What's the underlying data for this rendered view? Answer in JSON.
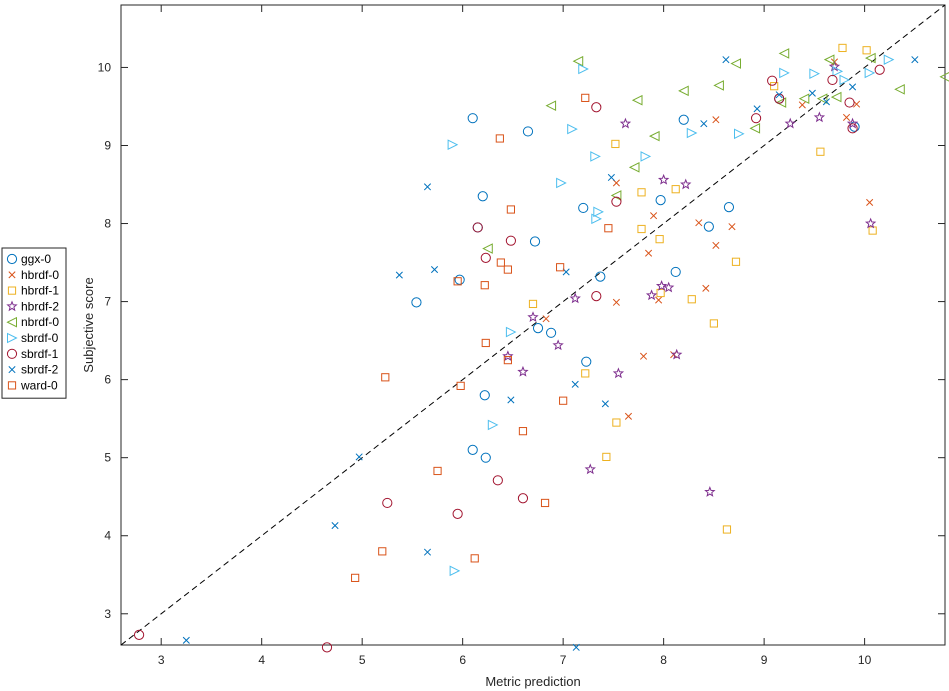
{
  "chart_data": {
    "type": "scatter",
    "xlabel": "Metric prediction",
    "ylabel": "Subjective score",
    "xlim": [
      2.6,
      10.8
    ],
    "ylim": [
      2.6,
      10.8
    ],
    "xticks": [
      3,
      4,
      5,
      6,
      7,
      8,
      9,
      10
    ],
    "yticks": [
      3,
      4,
      5,
      6,
      7,
      8,
      9,
      10
    ],
    "reference_line": "dashed diagonal y = x",
    "legend_position": "outside-left",
    "series": [
      {
        "name": "ggx-0",
        "marker": "circle",
        "color": "#0072BD",
        "points": [
          [
            6.1,
            9.35
          ],
          [
            6.65,
            9.18
          ],
          [
            6.2,
            8.35
          ],
          [
            7.2,
            8.2
          ],
          [
            8.65,
            8.21
          ],
          [
            8.45,
            7.96
          ],
          [
            7.97,
            8.3
          ],
          [
            6.15,
            7.95
          ],
          [
            6.72,
            7.77
          ],
          [
            5.97,
            7.28
          ],
          [
            5.54,
            6.99
          ],
          [
            7.37,
            7.32
          ],
          [
            8.12,
            7.38
          ],
          [
            6.75,
            6.66
          ],
          [
            6.88,
            6.6
          ],
          [
            7.23,
            6.23
          ],
          [
            6.22,
            5.8
          ],
          [
            6.1,
            5.1
          ],
          [
            6.23,
            5.0
          ],
          [
            8.2,
            9.33
          ],
          [
            9.9,
            9.24
          ],
          [
            9.15,
            9.6
          ]
        ]
      },
      {
        "name": "hbrdf-0",
        "marker": "x",
        "color": "#D95319",
        "points": [
          [
            7.53,
            8.52
          ],
          [
            7.9,
            8.1
          ],
          [
            7.85,
            7.62
          ],
          [
            8.35,
            8.01
          ],
          [
            8.52,
            7.72
          ],
          [
            8.68,
            7.96
          ],
          [
            8.42,
            7.17
          ],
          [
            7.53,
            6.99
          ],
          [
            7.95,
            7.02
          ],
          [
            6.83,
            6.78
          ],
          [
            7.8,
            6.3
          ],
          [
            8.1,
            6.32
          ],
          [
            7.65,
            5.53
          ],
          [
            8.52,
            9.33
          ],
          [
            9.38,
            9.52
          ],
          [
            9.7,
            10.07
          ],
          [
            9.82,
            9.36
          ],
          [
            9.92,
            9.53
          ],
          [
            10.05,
            8.27
          ]
        ]
      },
      {
        "name": "hbrdf-1",
        "marker": "square",
        "color": "#EDB120",
        "points": [
          [
            7.52,
            9.02
          ],
          [
            7.78,
            8.4
          ],
          [
            8.12,
            8.44
          ],
          [
            7.78,
            7.93
          ],
          [
            7.96,
            7.8
          ],
          [
            8.72,
            7.51
          ],
          [
            7.97,
            7.11
          ],
          [
            8.28,
            7.03
          ],
          [
            6.7,
            6.97
          ],
          [
            8.5,
            6.72
          ],
          [
            7.22,
            6.08
          ],
          [
            7.53,
            5.45
          ],
          [
            7.43,
            5.01
          ],
          [
            8.63,
            4.08
          ],
          [
            9.1,
            9.76
          ],
          [
            9.56,
            8.92
          ],
          [
            9.78,
            10.25
          ],
          [
            10.02,
            10.22
          ],
          [
            10.08,
            7.91
          ]
        ]
      },
      {
        "name": "hbrdf-2",
        "marker": "star",
        "color": "#7E2F8E",
        "points": [
          [
            7.62,
            9.28
          ],
          [
            8.0,
            8.56
          ],
          [
            8.22,
            8.5
          ],
          [
            7.98,
            7.2
          ],
          [
            8.05,
            7.18
          ],
          [
            7.88,
            7.08
          ],
          [
            7.12,
            7.04
          ],
          [
            6.7,
            6.8
          ],
          [
            6.95,
            6.44
          ],
          [
            6.45,
            6.3
          ],
          [
            6.6,
            6.1
          ],
          [
            7.55,
            6.08
          ],
          [
            8.13,
            6.32
          ],
          [
            7.27,
            4.85
          ],
          [
            8.46,
            4.56
          ],
          [
            9.26,
            9.28
          ],
          [
            9.55,
            9.36
          ],
          [
            9.7,
            10.01
          ],
          [
            9.88,
            9.28
          ],
          [
            10.06,
            8.0
          ]
        ]
      },
      {
        "name": "nbrdf-0",
        "marker": "triangle-left",
        "color": "#77AC30",
        "points": [
          [
            7.15,
            10.08
          ],
          [
            6.88,
            9.51
          ],
          [
            7.74,
            9.58
          ],
          [
            7.91,
            9.12
          ],
          [
            7.71,
            8.72
          ],
          [
            7.53,
            8.36
          ],
          [
            8.2,
            9.7
          ],
          [
            8.55,
            9.77
          ],
          [
            8.72,
            10.05
          ],
          [
            8.91,
            9.22
          ],
          [
            9.2,
            10.18
          ],
          [
            9.65,
            10.1
          ],
          [
            9.72,
            9.62
          ],
          [
            9.17,
            9.55
          ],
          [
            9.4,
            9.6
          ],
          [
            9.58,
            9.6
          ],
          [
            10.06,
            10.12
          ],
          [
            10.35,
            9.72
          ],
          [
            10.8,
            9.88
          ],
          [
            6.25,
            7.68
          ]
        ]
      },
      {
        "name": "sbrdf-0",
        "marker": "triangle-right",
        "color": "#4DBEEE",
        "points": [
          [
            5.9,
            9.01
          ],
          [
            7.2,
            9.98
          ],
          [
            7.09,
            9.21
          ],
          [
            6.98,
            8.52
          ],
          [
            7.32,
            8.86
          ],
          [
            7.82,
            8.86
          ],
          [
            8.28,
            9.16
          ],
          [
            8.75,
            9.15
          ],
          [
            7.35,
            8.15
          ],
          [
            7.33,
            8.06
          ],
          [
            9.2,
            9.93
          ],
          [
            9.5,
            9.92
          ],
          [
            9.73,
            9.95
          ],
          [
            9.8,
            9.84
          ],
          [
            10.05,
            9.93
          ],
          [
            10.24,
            10.1
          ],
          [
            6.48,
            6.61
          ],
          [
            6.3,
            5.42
          ],
          [
            5.92,
            3.55
          ]
        ]
      },
      {
        "name": "sbrdf-1",
        "marker": "circle",
        "color": "#A2142F",
        "points": [
          [
            7.33,
            9.49
          ],
          [
            7.53,
            8.28
          ],
          [
            6.15,
            7.95
          ],
          [
            6.48,
            7.78
          ],
          [
            6.23,
            7.56
          ],
          [
            7.33,
            7.07
          ],
          [
            6.35,
            4.71
          ],
          [
            6.6,
            4.48
          ],
          [
            5.95,
            4.28
          ],
          [
            5.25,
            4.42
          ],
          [
            4.65,
            2.57
          ],
          [
            2.78,
            2.73
          ],
          [
            9.08,
            9.83
          ],
          [
            8.92,
            9.35
          ],
          [
            9.68,
            9.84
          ],
          [
            9.85,
            9.55
          ],
          [
            9.88,
            9.22
          ],
          [
            10.15,
            9.97
          ],
          [
            9.15,
            9.6
          ]
        ]
      },
      {
        "name": "sbrdf-2",
        "marker": "x",
        "color": "#0072BD",
        "points": [
          [
            5.65,
            8.47
          ],
          [
            5.37,
            7.34
          ],
          [
            5.72,
            7.41
          ],
          [
            7.03,
            7.38
          ],
          [
            7.48,
            8.59
          ],
          [
            6.48,
            5.74
          ],
          [
            7.12,
            5.94
          ],
          [
            7.42,
            5.69
          ],
          [
            4.97,
            5.01
          ],
          [
            4.73,
            4.13
          ],
          [
            5.65,
            3.79
          ],
          [
            3.25,
            2.66
          ],
          [
            7.13,
            2.57
          ],
          [
            8.4,
            9.28
          ],
          [
            8.62,
            10.1
          ],
          [
            8.93,
            9.47
          ],
          [
            9.15,
            9.65
          ],
          [
            9.48,
            9.67
          ],
          [
            9.62,
            9.56
          ],
          [
            9.88,
            9.75
          ],
          [
            10.5,
            10.1
          ]
        ]
      },
      {
        "name": "ward-0",
        "marker": "square",
        "color": "#D95319",
        "points": [
          [
            6.37,
            9.09
          ],
          [
            6.48,
            8.18
          ],
          [
            7.45,
            7.94
          ],
          [
            6.38,
            7.5
          ],
          [
            6.45,
            7.41
          ],
          [
            6.97,
            7.44
          ],
          [
            5.95,
            7.26
          ],
          [
            6.22,
            7.21
          ],
          [
            6.23,
            6.47
          ],
          [
            5.23,
            6.03
          ],
          [
            5.98,
            5.92
          ],
          [
            6.45,
            6.25
          ],
          [
            7.0,
            5.73
          ],
          [
            6.6,
            5.34
          ],
          [
            5.75,
            4.83
          ],
          [
            6.82,
            4.42
          ],
          [
            5.2,
            3.8
          ],
          [
            6.12,
            3.71
          ],
          [
            4.93,
            3.46
          ],
          [
            7.22,
            9.61
          ]
        ]
      }
    ]
  }
}
